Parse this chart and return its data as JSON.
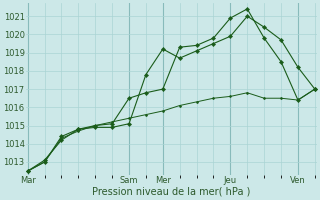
{
  "xlabel": "Pression niveau de la mer( hPa )",
  "bg_color": "#cce8e8",
  "grid_color_major": "#88bbbb",
  "grid_color_minor": "#aad4d4",
  "line_color": "#1a5c1a",
  "ylim": [
    1012.3,
    1021.7
  ],
  "yticks": [
    1013,
    1014,
    1015,
    1016,
    1017,
    1018,
    1019,
    1020,
    1021
  ],
  "xlim": [
    -0.05,
    8.55
  ],
  "day_labels": [
    "Mar",
    "Sam",
    "Mer",
    "Jeu",
    "Ven"
  ],
  "day_positions": [
    0.0,
    3.0,
    4.0,
    6.0,
    8.0
  ],
  "vline_positions": [
    0.0,
    3.0,
    4.0,
    6.0,
    8.0
  ],
  "series1_x": [
    0.0,
    0.5,
    1.0,
    1.5,
    2.0,
    2.5,
    3.0,
    3.5,
    4.0,
    4.5,
    5.0,
    5.5,
    6.0,
    6.5,
    7.0,
    7.5,
    8.0,
    8.5
  ],
  "series1_y": [
    1012.5,
    1013.1,
    1014.2,
    1014.8,
    1014.9,
    1014.9,
    1015.1,
    1017.8,
    1019.2,
    1018.7,
    1019.1,
    1019.5,
    1019.9,
    1021.0,
    1020.4,
    1019.7,
    1018.2,
    1017.0
  ],
  "series2_x": [
    0.0,
    0.5,
    1.0,
    1.5,
    2.0,
    2.5,
    3.0,
    3.5,
    4.0,
    4.5,
    5.0,
    5.5,
    6.0,
    6.5,
    7.0,
    7.5,
    8.0,
    8.5
  ],
  "series2_y": [
    1012.5,
    1013.0,
    1014.4,
    1014.8,
    1015.0,
    1015.1,
    1016.5,
    1016.8,
    1017.0,
    1019.3,
    1019.4,
    1019.8,
    1020.9,
    1021.4,
    1019.8,
    1018.5,
    1016.4,
    1017.0
  ],
  "series3_x": [
    0.0,
    0.5,
    1.0,
    1.5,
    2.0,
    2.5,
    3.0,
    3.5,
    4.0,
    4.5,
    5.0,
    5.5,
    6.0,
    6.5,
    7.0,
    7.5,
    8.0,
    8.5
  ],
  "series3_y": [
    1012.5,
    1013.0,
    1014.3,
    1014.7,
    1015.0,
    1015.2,
    1015.4,
    1015.6,
    1015.8,
    1016.1,
    1016.3,
    1016.5,
    1016.6,
    1016.8,
    1016.5,
    1016.5,
    1016.4,
    1017.0
  ],
  "tick_label_fontsize": 6,
  "xlabel_fontsize": 7
}
